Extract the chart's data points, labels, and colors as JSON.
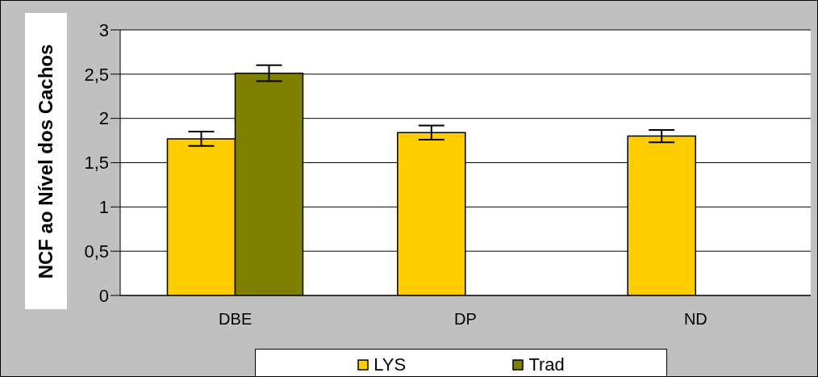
{
  "chart_data": {
    "type": "bar",
    "ylabel": "NCF ao Nível dos Cachos",
    "categories": [
      "DBE",
      "DP",
      "ND"
    ],
    "series": [
      {
        "name": "LYS",
        "color": "#ffcc00",
        "values": [
          1.77,
          1.84,
          1.8
        ],
        "errors": [
          0.08,
          0.08,
          0.07
        ]
      },
      {
        "name": "Trad",
        "color": "#808000",
        "values": [
          2.51,
          null,
          null
        ],
        "errors": [
          0.09,
          null,
          null
        ]
      }
    ],
    "ylim": [
      0,
      3
    ],
    "yticks": [
      0,
      {
        "value": 0.5,
        "label": "0,5"
      },
      1,
      {
        "value": 1.5,
        "label": "1,5"
      },
      2,
      {
        "value": 2.5,
        "label": "2,5"
      },
      3
    ],
    "grid": "y",
    "legend": "bottom"
  }
}
